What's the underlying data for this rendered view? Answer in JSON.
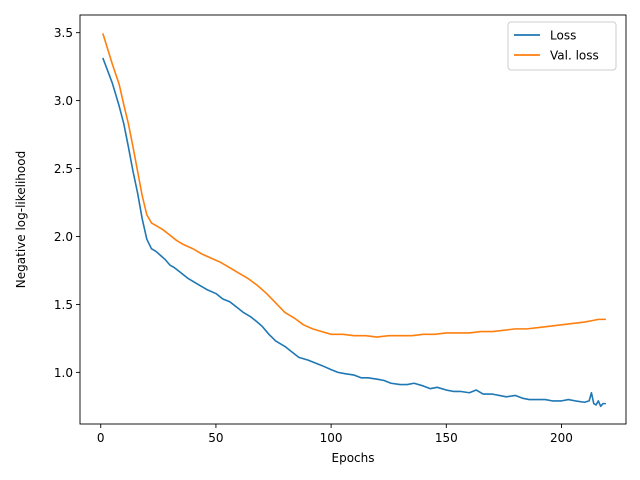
{
  "chart_data": {
    "type": "line",
    "xlabel": "Epochs",
    "ylabel": "Negative log-likelihood",
    "xlim": [
      -9,
      228
    ],
    "ylim": [
      0.62,
      3.63
    ],
    "xticks": [
      0,
      50,
      100,
      150,
      200
    ],
    "yticks": [
      1.0,
      1.5,
      2.0,
      2.5,
      3.0,
      3.5
    ],
    "grid": false,
    "legend": "top-right",
    "series": [
      {
        "name": "Loss",
        "color": "#1f77b4",
        "x": [
          1,
          3,
          5,
          8,
          10,
          12,
          14,
          16,
          18,
          20,
          22,
          24,
          26,
          28,
          30,
          32,
          35,
          38,
          40,
          43,
          46,
          50,
          53,
          56,
          59,
          62,
          65,
          68,
          70,
          73,
          76,
          80,
          83,
          86,
          90,
          93,
          96,
          100,
          103,
          106,
          110,
          113,
          116,
          120,
          123,
          126,
          130,
          133,
          136,
          140,
          143,
          146,
          150,
          153,
          156,
          160,
          163,
          166,
          170,
          173,
          176,
          180,
          183,
          186,
          190,
          193,
          196,
          200,
          203,
          206,
          210,
          212,
          213,
          214,
          215,
          216,
          217,
          218,
          219
        ],
        "y": [
          3.31,
          3.22,
          3.13,
          2.96,
          2.83,
          2.66,
          2.48,
          2.32,
          2.13,
          1.98,
          1.91,
          1.89,
          1.86,
          1.83,
          1.79,
          1.77,
          1.73,
          1.69,
          1.67,
          1.64,
          1.61,
          1.58,
          1.54,
          1.52,
          1.48,
          1.44,
          1.41,
          1.37,
          1.34,
          1.28,
          1.23,
          1.19,
          1.15,
          1.11,
          1.09,
          1.07,
          1.05,
          1.02,
          1.0,
          0.99,
          0.98,
          0.96,
          0.96,
          0.95,
          0.94,
          0.92,
          0.91,
          0.91,
          0.92,
          0.9,
          0.88,
          0.89,
          0.87,
          0.86,
          0.86,
          0.85,
          0.87,
          0.84,
          0.84,
          0.83,
          0.82,
          0.83,
          0.81,
          0.8,
          0.8,
          0.8,
          0.79,
          0.79,
          0.8,
          0.79,
          0.78,
          0.79,
          0.85,
          0.77,
          0.76,
          0.79,
          0.75,
          0.77,
          0.77
        ]
      },
      {
        "name": "Val. loss",
        "color": "#ff7f0e",
        "x": [
          1,
          3,
          5,
          8,
          10,
          12,
          14,
          16,
          18,
          20,
          22,
          24,
          27,
          30,
          33,
          36,
          40,
          44,
          48,
          52,
          56,
          60,
          64,
          68,
          72,
          76,
          80,
          84,
          88,
          92,
          96,
          100,
          105,
          110,
          115,
          120,
          125,
          130,
          135,
          140,
          145,
          150,
          155,
          160,
          165,
          170,
          175,
          180,
          185,
          190,
          195,
          200,
          205,
          210,
          213,
          216,
          219
        ],
        "y": [
          3.49,
          3.38,
          3.27,
          3.12,
          2.97,
          2.83,
          2.66,
          2.48,
          2.3,
          2.16,
          2.1,
          2.08,
          2.05,
          2.01,
          1.97,
          1.94,
          1.91,
          1.87,
          1.84,
          1.81,
          1.77,
          1.73,
          1.69,
          1.64,
          1.58,
          1.51,
          1.44,
          1.4,
          1.35,
          1.32,
          1.3,
          1.28,
          1.28,
          1.27,
          1.27,
          1.26,
          1.27,
          1.27,
          1.27,
          1.28,
          1.28,
          1.29,
          1.29,
          1.29,
          1.3,
          1.3,
          1.31,
          1.32,
          1.32,
          1.33,
          1.34,
          1.35,
          1.36,
          1.37,
          1.38,
          1.39,
          1.39
        ]
      }
    ]
  }
}
